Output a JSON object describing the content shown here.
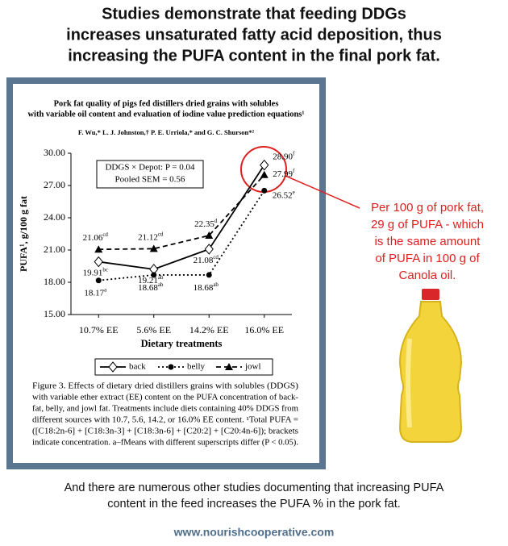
{
  "header": {
    "lines": [
      "Studies demonstrate that feeding DDGs",
      "increases unsaturated fatty acid deposition, thus",
      "increasing the PUFA content in the final pork fat."
    ]
  },
  "paper": {
    "title_lines": [
      "Pork fat quality of pigs fed distillers dried grains with solubles",
      "with variable oil content and evaluation of iodine value prediction equations¹"
    ],
    "authors": "F. Wu,* L. J. Johnston,† P. E. Urriola,* and G. C. Shurson*²",
    "caption_lines": [
      "Figure 3. Effects of dietary dried distillers grains with solubles (DDGS)",
      "with variable ether extract (EE) content on the PUFA concentration of back-",
      "fat, belly, and jowl fat. Treatments include diets containing 40% DDGS from",
      "different sources with 10.7, 5.6, 14.2, or 16.0% EE content. ¹Total PUFA =",
      "([C18:2n-6] + [C18:3n-3] + [C18:3n-6] + [C20:2] + [C20:4n-6]); brackets",
      "indicate concentration. a–fMeans with different superscripts differ (P < 0.05)."
    ]
  },
  "chart_data": {
    "type": "line",
    "x_label": "Dietary treatments",
    "y_label": "PUFA¹, g/100 g fat",
    "categories": [
      "10.7% EE",
      "5.6% EE",
      "14.2% EE",
      "16.0% EE"
    ],
    "ylim": [
      15,
      30
    ],
    "yticks": [
      {
        "value": 15,
        "label": "15.00"
      },
      {
        "value": 18,
        "label": "18.00"
      },
      {
        "value": 21,
        "label": "21.00"
      },
      {
        "value": 24,
        "label": "24.00"
      },
      {
        "value": 27,
        "label": "27.00"
      },
      {
        "value": 30,
        "label": "30.00"
      }
    ],
    "annotation_lines": [
      "DDGS × Depot: P = 0.04",
      "Pooled SEM = 0.56"
    ],
    "series": [
      {
        "name": "back",
        "color": "#000000",
        "marker": "diamond",
        "dash": "solid",
        "values": [
          19.91,
          19.21,
          21.08,
          28.9
        ],
        "value_labels": [
          "19.91",
          "19.21",
          "21.08",
          "28.90"
        ],
        "superscripts": [
          "bc",
          "ab",
          "cd",
          "f"
        ]
      },
      {
        "name": "belly",
        "color": "#000000",
        "marker": "circle",
        "dash": "dotted",
        "values": [
          18.17,
          18.68,
          18.68,
          26.52
        ],
        "value_labels": [
          "18.17",
          "18.68",
          "18.68",
          "26.52"
        ],
        "superscripts": [
          "a",
          "ab",
          "ab",
          "e"
        ]
      },
      {
        "name": "jowl",
        "color": "#000000",
        "marker": "triangle",
        "dash": "dashed",
        "values": [
          21.06,
          21.12,
          22.35,
          27.99
        ],
        "value_labels": [
          "21.06",
          "21.12",
          "22.35",
          "27.99"
        ],
        "superscripts": [
          "cd",
          "cd",
          "d",
          "f"
        ]
      }
    ]
  },
  "callout": {
    "lines": [
      "Per 100 g of pork fat,",
      "29 g of PUFA - which",
      "is the same amount",
      "of PUFA in 100 g of",
      "Canola oil."
    ]
  },
  "footer": {
    "lines": [
      "And there are numerous other studies documenting that increasing PUFA",
      "content in the feed increases the PUFA % in the pork fat."
    ],
    "url": "www.nourishcooperative.com"
  }
}
